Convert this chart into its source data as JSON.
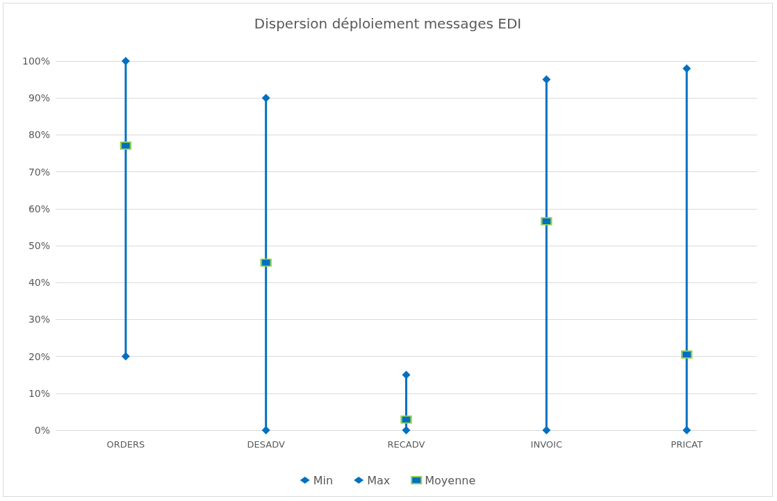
{
  "chart_data": {
    "type": "bar",
    "title": "Dispersion déploiement messages EDI",
    "categories": [
      "ORDERS",
      "DESADV",
      "RECADV",
      "INVOIC",
      "PRICAT"
    ],
    "series": [
      {
        "color": "#0070c0",
        "base": [
          20,
          0,
          0,
          0,
          0
        ],
        "values": [
          80,
          90,
          15,
          95,
          98
        ]
      },
      {
        "type": "scatter",
        "name": "Min",
        "color": "#0070c0",
        "marker": "diamond",
        "x": [
          "ORDERS",
          "DESADV",
          "RECADV",
          "INVOIC",
          "PRICAT"
        ],
        "values": [
          20,
          0,
          0,
          0,
          0
        ]
      },
      {
        "type": "scatter",
        "name": "Max",
        "color": "#0070c0",
        "marker": "diamond",
        "x": [
          "ORDERS",
          "DESADV",
          "RECADV",
          "INVOIC",
          "PRICAT"
        ],
        "values": [
          100,
          90,
          15,
          95,
          98
        ]
      },
      {
        "type": "scatter",
        "name": "Moyenne",
        "color": "#0070c0",
        "marker": "square",
        "x": [
          "ORDERS",
          "DESADV",
          "RECADV",
          "INVOIC",
          "PRICAT"
        ],
        "values": [
          77.1,
          45.4,
          2.9,
          56.6,
          20.5
        ]
      }
    ],
    "ylim": [
      0,
      100
    ],
    "yticks": [
      {
        "value": 0,
        "label": "0%"
      },
      {
        "value": 10,
        "label": "10%"
      },
      {
        "value": 20,
        "label": "20%"
      },
      {
        "value": 30,
        "label": "30%"
      },
      {
        "value": 40,
        "label": "40%"
      },
      {
        "value": 50,
        "label": "50%"
      },
      {
        "value": 60,
        "label": "60%"
      },
      {
        "value": 70,
        "label": "70%"
      },
      {
        "value": 80,
        "label": "80%"
      },
      {
        "value": 90,
        "label": "90%"
      },
      {
        "value": 100,
        "label": "100%"
      }
    ],
    "grid": "y",
    "legend": "bottom"
  }
}
